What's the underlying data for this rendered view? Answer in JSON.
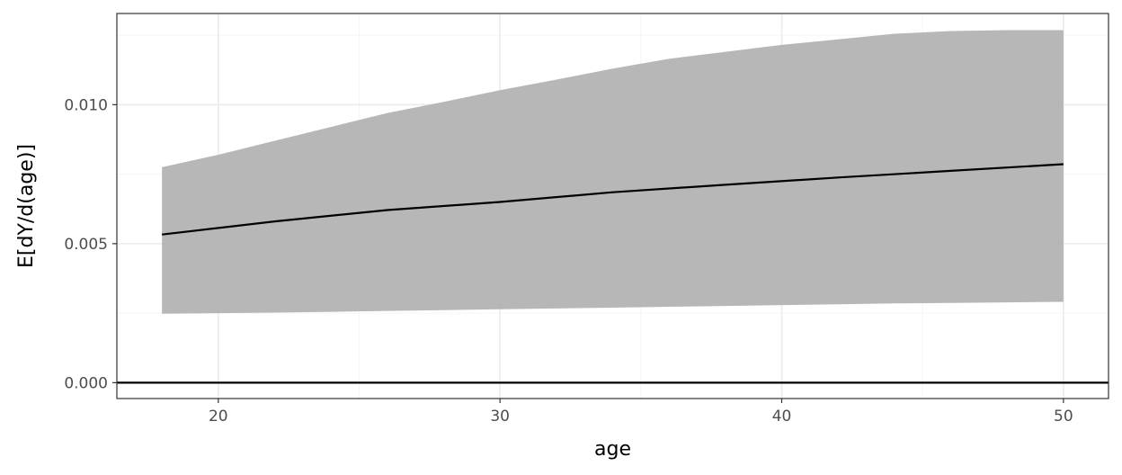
{
  "chart_data": {
    "type": "area",
    "xlabel": "age",
    "ylabel": "E[dY/d(age)]",
    "xlim": [
      16.4,
      51.6
    ],
    "ylim": [
      -0.00057,
      0.01328
    ],
    "x_ticks": [
      20,
      30,
      40,
      50
    ],
    "x_tick_labels": [
      "20",
      "30",
      "40",
      "50"
    ],
    "y_ticks": [
      0.0,
      0.005,
      0.01
    ],
    "y_tick_labels": [
      "0.000",
      "0.005",
      "0.010"
    ],
    "x_minor_ticks": [
      25,
      35,
      45
    ],
    "y_minor_ticks": [
      0.0025,
      0.0075,
      0.0125
    ],
    "grid": true,
    "legend": "none",
    "series": [
      {
        "kind": "line",
        "x": [
          18,
          22,
          26,
          30,
          34,
          38,
          42,
          46,
          50
        ],
        "values": [
          0.00533,
          0.0058,
          0.00621,
          0.0065,
          0.00685,
          0.00712,
          0.00738,
          0.00762,
          0.00786
        ]
      },
      {
        "kind": "ribbon",
        "x": [
          18,
          20,
          22,
          24,
          26,
          28,
          30,
          32,
          34,
          36,
          38,
          40,
          42,
          44,
          46,
          48,
          50
        ],
        "lower": [
          0.00248,
          0.0025,
          0.00252,
          0.00255,
          0.00258,
          0.00261,
          0.00264,
          0.00267,
          0.0027,
          0.00273,
          0.00276,
          0.00279,
          0.00282,
          0.00285,
          0.00287,
          0.00289,
          0.00291
        ],
        "upper": [
          0.00775,
          0.0082,
          0.0087,
          0.0092,
          0.0097,
          0.0101,
          0.01052,
          0.0109,
          0.0113,
          0.01165,
          0.0119,
          0.01215,
          0.01235,
          0.01255,
          0.01265,
          0.01268,
          0.01268
        ]
      }
    ],
    "reference_line": {
      "y": 0.0
    },
    "colors": {
      "ribbon": "#b3b3b3",
      "line": "#000000",
      "grid_major": "#ebebeb",
      "grid_minor": "#f5f5f5",
      "panel_border": "#333333",
      "tick_text": "#4d4d4d"
    }
  }
}
